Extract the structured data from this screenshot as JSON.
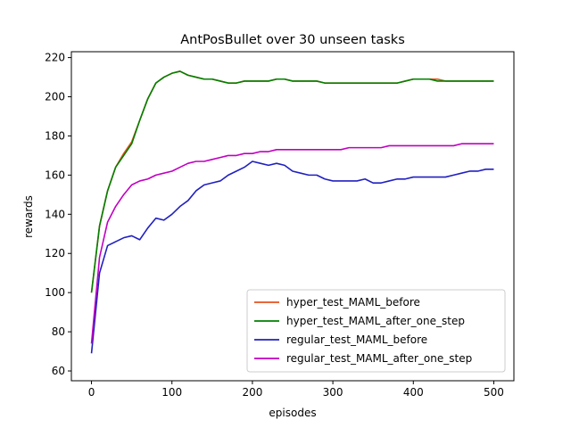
{
  "chart_data": {
    "type": "line",
    "title": "AntPosBullet over 30 unseen tasks",
    "xlabel": "episodes",
    "ylabel": "rewards",
    "xlim": [
      -25,
      525
    ],
    "ylim": [
      55,
      223
    ],
    "xticks": [
      0,
      100,
      200,
      300,
      400,
      500
    ],
    "yticks": [
      60,
      80,
      100,
      120,
      140,
      160,
      180,
      200,
      220
    ],
    "grid": false,
    "legend_position": "lower-right",
    "series": [
      {
        "name": "hyper_test_MAML_before",
        "color": "#e6501e",
        "x": [
          0,
          10,
          20,
          30,
          40,
          50,
          60,
          70,
          80,
          90,
          100,
          110,
          120,
          130,
          140,
          150,
          160,
          170,
          180,
          190,
          200,
          210,
          220,
          230,
          240,
          250,
          260,
          270,
          280,
          290,
          300,
          310,
          320,
          330,
          340,
          350,
          360,
          370,
          380,
          390,
          400,
          410,
          420,
          430,
          440,
          450,
          460,
          470,
          480,
          490,
          500
        ],
        "values": [
          100,
          134,
          152,
          164,
          171,
          177,
          188,
          199,
          207,
          210,
          212,
          213,
          211,
          210,
          209,
          209,
          208,
          207,
          207,
          208,
          208,
          208,
          208,
          209,
          209,
          208,
          208,
          208,
          208,
          207,
          207,
          207,
          207,
          207,
          207,
          207,
          207,
          207,
          207,
          208,
          209,
          209,
          209,
          209,
          208,
          208,
          208,
          208,
          208,
          208,
          208
        ]
      },
      {
        "name": "hyper_test_MAML_after_one_step",
        "color": "#008000",
        "x": [
          0,
          10,
          20,
          30,
          40,
          50,
          60,
          70,
          80,
          90,
          100,
          110,
          120,
          130,
          140,
          150,
          160,
          170,
          180,
          190,
          200,
          210,
          220,
          230,
          240,
          250,
          260,
          270,
          280,
          290,
          300,
          310,
          320,
          330,
          340,
          350,
          360,
          370,
          380,
          390,
          400,
          410,
          420,
          430,
          440,
          450,
          460,
          470,
          480,
          490,
          500
        ],
        "values": [
          100,
          134,
          152,
          164,
          170,
          176,
          188,
          199,
          207,
          210,
          212,
          213,
          211,
          210,
          209,
          209,
          208,
          207,
          207,
          208,
          208,
          208,
          208,
          209,
          209,
          208,
          208,
          208,
          208,
          207,
          207,
          207,
          207,
          207,
          207,
          207,
          207,
          207,
          207,
          208,
          209,
          209,
          209,
          208,
          208,
          208,
          208,
          208,
          208,
          208,
          208
        ]
      },
      {
        "name": "regular_test_MAML_before",
        "color": "#2020c0",
        "x": [
          0,
          10,
          20,
          30,
          40,
          50,
          60,
          70,
          80,
          90,
          100,
          110,
          120,
          130,
          140,
          150,
          160,
          170,
          180,
          190,
          200,
          210,
          220,
          230,
          240,
          250,
          260,
          270,
          280,
          290,
          300,
          310,
          320,
          330,
          340,
          350,
          360,
          370,
          380,
          390,
          400,
          410,
          420,
          430,
          440,
          450,
          460,
          470,
          480,
          490,
          500
        ],
        "values": [
          69,
          110,
          124,
          126,
          128,
          129,
          127,
          133,
          138,
          137,
          140,
          144,
          147,
          152,
          155,
          156,
          157,
          160,
          162,
          164,
          167,
          166,
          165,
          166,
          165,
          162,
          161,
          160,
          160,
          158,
          157,
          157,
          157,
          157,
          158,
          156,
          156,
          157,
          158,
          158,
          159,
          159,
          159,
          159,
          159,
          160,
          161,
          162,
          162,
          163,
          163
        ]
      },
      {
        "name": "regular_test_MAML_after_one_step",
        "color": "#c000c0",
        "x": [
          0,
          10,
          20,
          30,
          40,
          50,
          60,
          70,
          80,
          90,
          100,
          110,
          120,
          130,
          140,
          150,
          160,
          170,
          180,
          190,
          200,
          210,
          220,
          230,
          240,
          250,
          260,
          270,
          280,
          290,
          300,
          310,
          320,
          330,
          340,
          350,
          360,
          370,
          380,
          390,
          400,
          410,
          420,
          430,
          440,
          450,
          460,
          470,
          480,
          490,
          500
        ],
        "values": [
          74,
          118,
          136,
          144,
          150,
          155,
          157,
          158,
          160,
          161,
          162,
          164,
          166,
          167,
          167,
          168,
          169,
          170,
          170,
          171,
          171,
          172,
          172,
          173,
          173,
          173,
          173,
          173,
          173,
          173,
          173,
          173,
          174,
          174,
          174,
          174,
          174,
          175,
          175,
          175,
          175,
          175,
          175,
          175,
          175,
          175,
          176,
          176,
          176,
          176,
          176
        ]
      }
    ]
  }
}
